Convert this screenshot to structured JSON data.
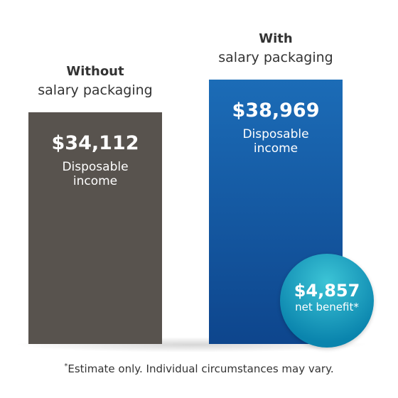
{
  "chart_data": {
    "type": "bar",
    "categories": [
      {
        "title": "Without",
        "subtitle": "salary packaging"
      },
      {
        "title": "With",
        "subtitle": "salary packaging"
      }
    ],
    "values": [
      34112,
      38969
    ],
    "value_labels": [
      "$34,112",
      "$38,969"
    ],
    "value_captions": [
      "Disposable income",
      "Disposable income"
    ],
    "colors": [
      "#58534e",
      "#1560a8"
    ],
    "net_benefit": {
      "value": 4857,
      "value_label": "$4,857",
      "caption": "net benefit*"
    },
    "footnote_marker": "*",
    "footnote": "Estimate only. Individual circumstances may vary."
  }
}
